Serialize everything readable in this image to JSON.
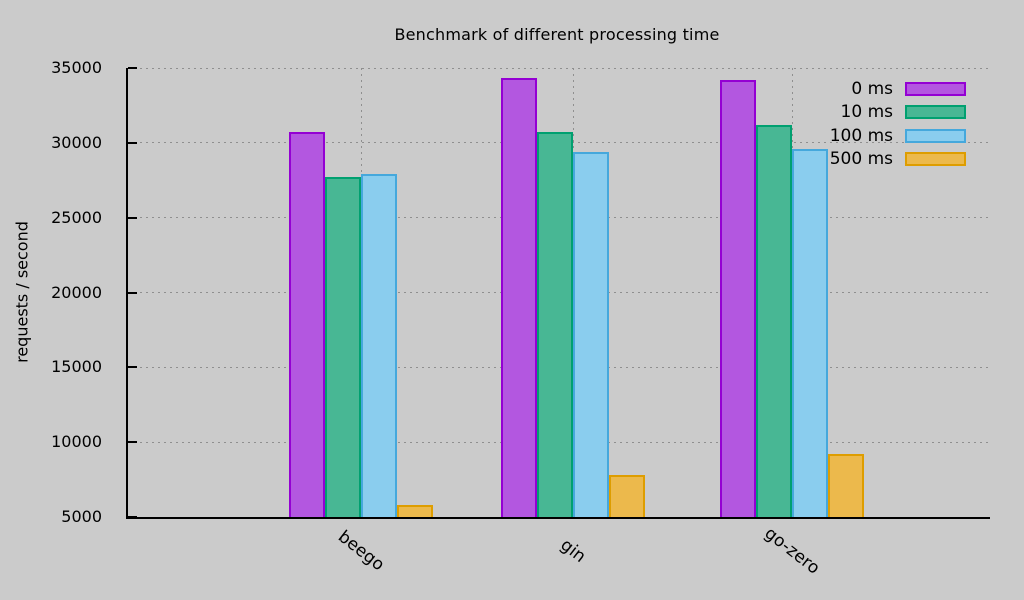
{
  "title": "Benchmark of different processing time",
  "chart_data": {
    "type": "bar",
    "title": "Benchmark of different processing time",
    "xlabel": "",
    "ylabel": "requests / second",
    "categories": [
      "beego",
      "gin",
      "go-zero"
    ],
    "series": [
      {
        "name": "0 ms",
        "fill": "#b357e0",
        "border": "#9400d3",
        "values": [
          30700,
          34300,
          34200
        ]
      },
      {
        "name": "10 ms",
        "fill": "#48b794",
        "border": "#00a070",
        "values": [
          27700,
          30700,
          31200
        ]
      },
      {
        "name": "100 ms",
        "fill": "#8acdee",
        "border": "#45a8dc",
        "values": [
          27900,
          29400,
          29600
        ]
      },
      {
        "name": "500 ms",
        "fill": "#ecb94c",
        "border": "#de9d00",
        "values": [
          5800,
          7800,
          9200
        ]
      }
    ],
    "ylim": [
      5000,
      35000
    ],
    "yticks": [
      5000,
      10000,
      15000,
      20000,
      25000,
      30000,
      35000
    ],
    "grid": true,
    "legend_position": "top-right",
    "background": "#cbcbcb",
    "text_color": "#000000",
    "grid_color": "#8f8f8f"
  }
}
